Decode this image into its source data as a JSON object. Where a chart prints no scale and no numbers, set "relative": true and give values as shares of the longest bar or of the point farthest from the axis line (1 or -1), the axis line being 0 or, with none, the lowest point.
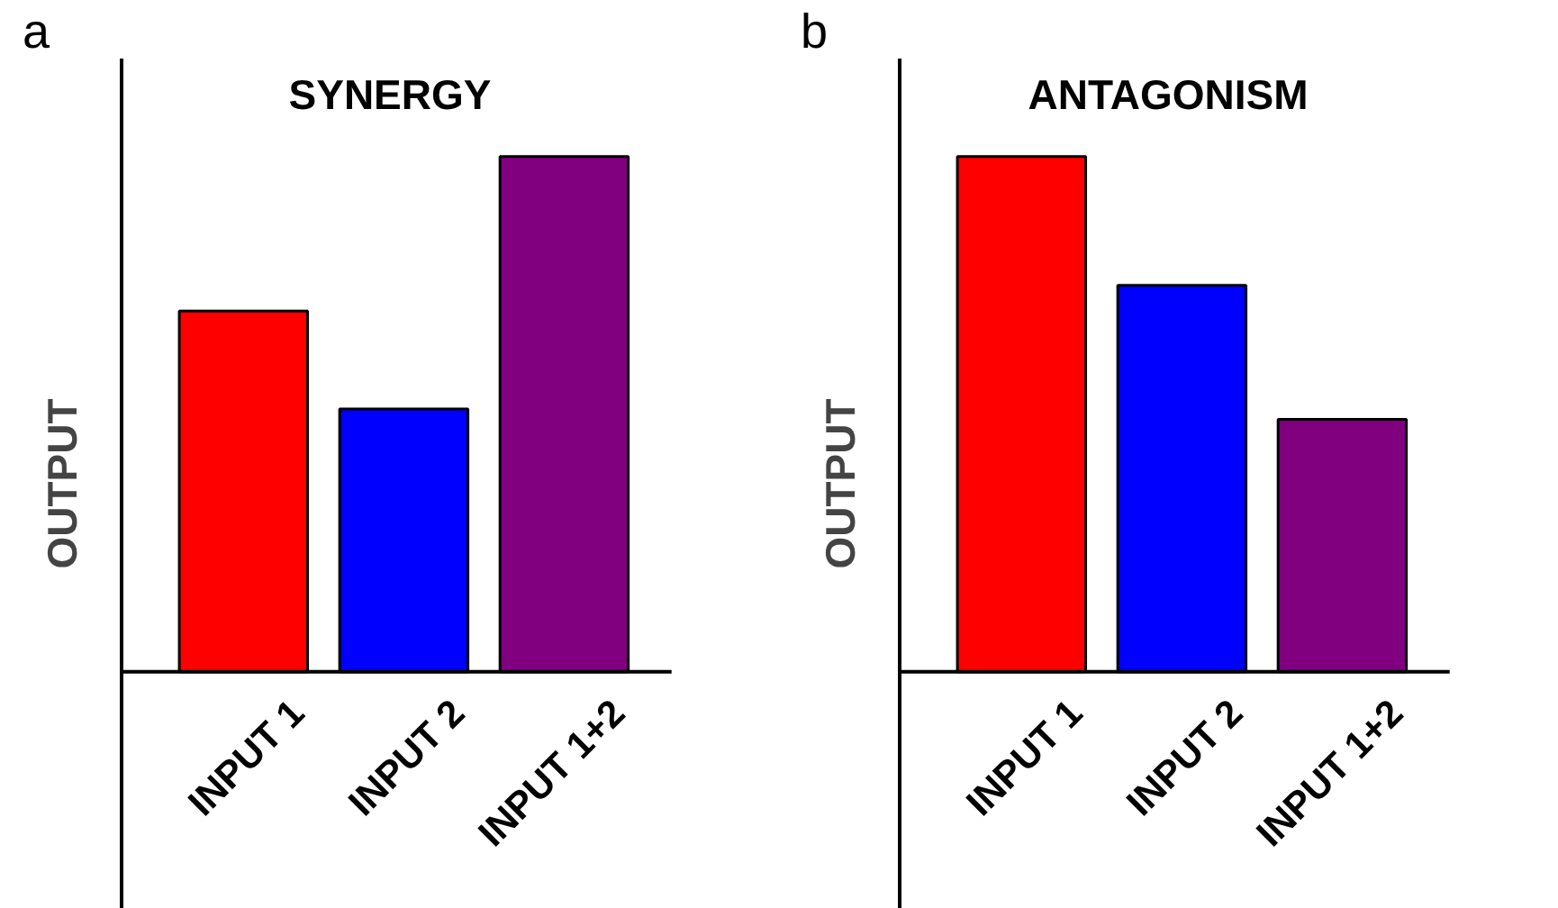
{
  "chart_data": [
    {
      "type": "bar",
      "title": "SYNERGY",
      "ylabel": "OUTPUT",
      "annotations": [
        "a"
      ],
      "categories": [
        "INPUT 1",
        "INPUT 2",
        "INPUT 1+2"
      ],
      "colors": [
        "#ff0000",
        "#0000ff",
        "#800080"
      ],
      "values": [
        0.7,
        0.51,
        1
      ],
      "relative": true
    },
    {
      "type": "bar",
      "title": "ANTAGONISM",
      "ylabel": "OUTPUT",
      "annotations": [
        "b"
      ],
      "categories": [
        "INPUT 1",
        "INPUT 2",
        "INPUT 1+2"
      ],
      "colors": [
        "#ff0000",
        "#0000ff",
        "#800080"
      ],
      "values": [
        1,
        0.75,
        0.49
      ],
      "relative": true
    }
  ]
}
